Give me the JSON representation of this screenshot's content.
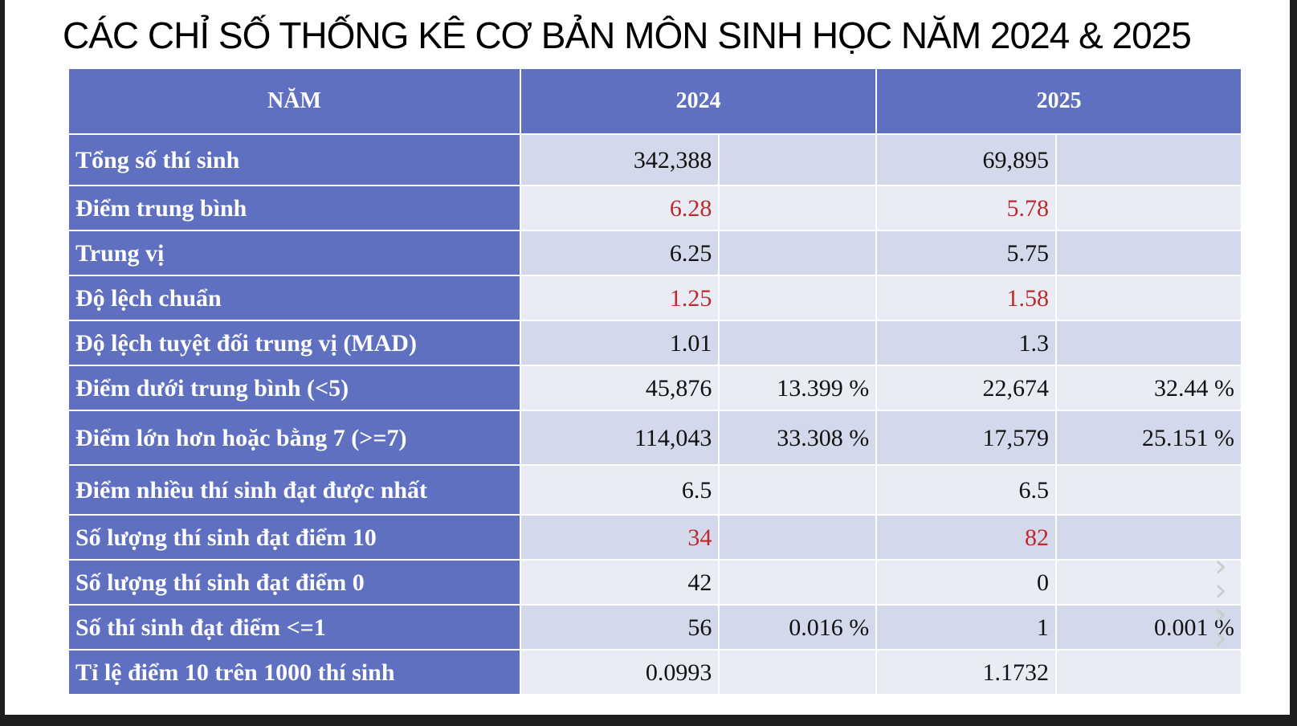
{
  "title": "CÁC CHỈ SỐ THỐNG KÊ CƠ BẢN MÔN SINH HỌC NĂM 2024 & 2025",
  "header": {
    "col0": "NĂM",
    "col1": "2024",
    "col2": "2025"
  },
  "rows": [
    {
      "label": "Tổng số thí sinh",
      "v2024": "342,388",
      "p2024": "",
      "v2025": "69,895",
      "p2025": "",
      "highlight": false
    },
    {
      "label": "Điểm trung bình",
      "v2024": "6.28",
      "p2024": "",
      "v2025": "5.78",
      "p2025": "",
      "highlight": true
    },
    {
      "label": "Trung vị",
      "v2024": "6.25",
      "p2024": "",
      "v2025": "5.75",
      "p2025": "",
      "highlight": false
    },
    {
      "label": "Độ lệch chuẩn",
      "v2024": "1.25",
      "p2024": "",
      "v2025": "1.58",
      "p2025": "",
      "highlight": true
    },
    {
      "label": "Độ lệch tuyệt đối trung vị (MAD)",
      "v2024": "1.01",
      "p2024": "",
      "v2025": "1.3",
      "p2025": "",
      "highlight": false
    },
    {
      "label": "Điểm dưới trung bình (<5)",
      "v2024": "45,876",
      "p2024": "13.399 %",
      "v2025": "22,674",
      "p2025": "32.44 %",
      "highlight": false
    },
    {
      "label": "Điểm lớn hơn hoặc bằng 7 (>=7)",
      "v2024": "114,043",
      "p2024": "33.308 %",
      "v2025": "17,579",
      "p2025": "25.151 %",
      "highlight": false
    },
    {
      "label": "Điểm nhiều thí sinh đạt được nhất",
      "v2024": "6.5",
      "p2024": "",
      "v2025": "6.5",
      "p2025": "",
      "highlight": false
    },
    {
      "label": "Số lượng thí sinh đạt điểm 10",
      "v2024": "34",
      "p2024": "",
      "v2025": "82",
      "p2025": "",
      "highlight": true
    },
    {
      "label": "Số lượng thí sinh đạt điểm 0",
      "v2024": "42",
      "p2024": "",
      "v2025": "0",
      "p2025": "",
      "highlight": false
    },
    {
      "label": "Số thí sinh đạt điểm <=1",
      "v2024": "56",
      "p2024": "0.016 %",
      "v2025": "1",
      "p2025": "0.001 %",
      "highlight": false
    },
    {
      "label": "Tỉ lệ điểm 10 trên 1000 thí sinh",
      "v2024": "0.0993",
      "p2024": "",
      "v2025": "1.1732",
      "p2025": "",
      "highlight": false
    }
  ],
  "colors": {
    "header_bg": "#5f70c1",
    "row_odd": "#d3d8ea",
    "row_even": "#eaecf5",
    "highlight_text": "#c0282c"
  }
}
